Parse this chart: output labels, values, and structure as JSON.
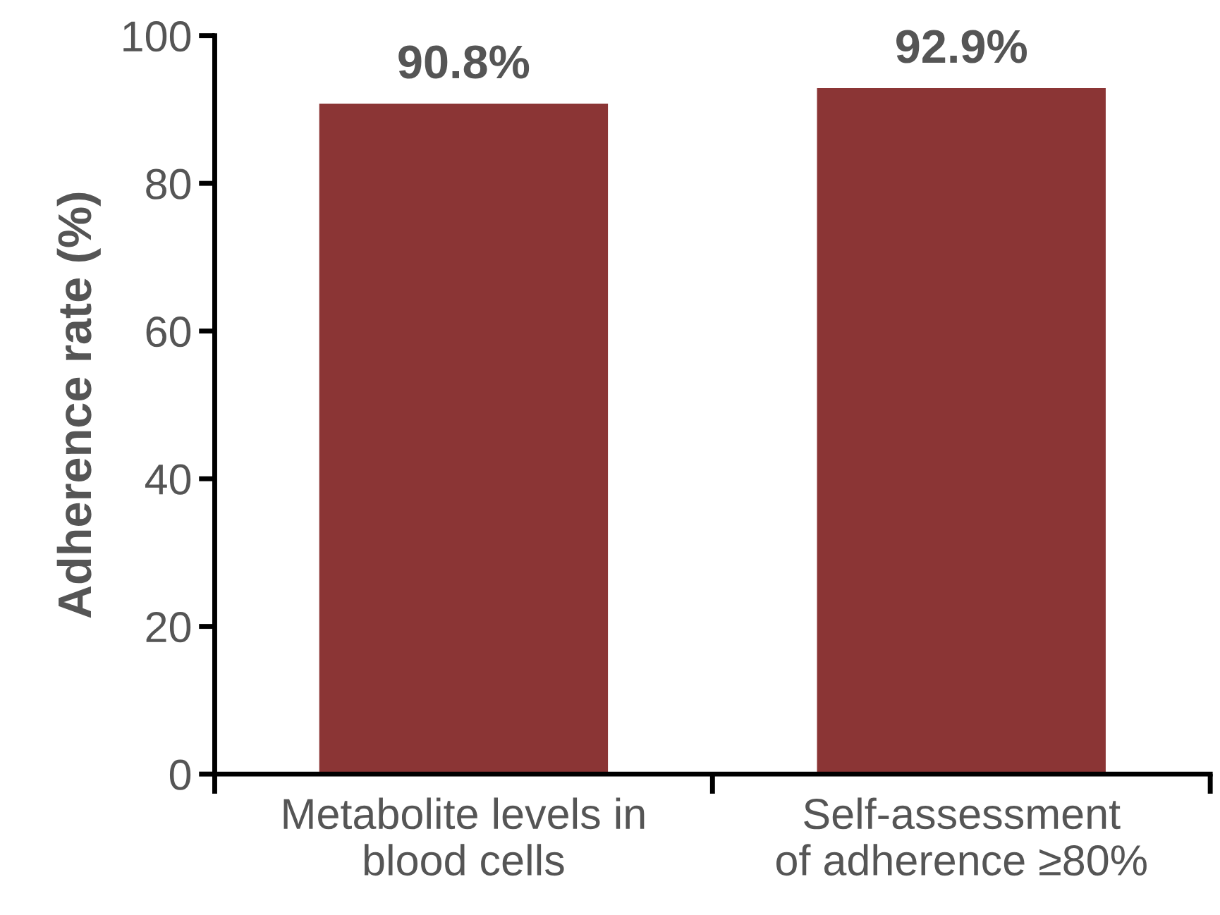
{
  "chart_data": {
    "type": "bar",
    "ylabel": "Adherence rate (%)",
    "categories": [
      "Metabolite levels in\nblood cells",
      "Self-assessment\nof adherence ≥80%"
    ],
    "values": [
      90.8,
      92.9
    ],
    "value_labels": [
      "90.8%",
      "92.9%"
    ],
    "color": "#8b3535",
    "ylim": [
      0,
      100
    ],
    "yticks": [
      0,
      20,
      40,
      60,
      80,
      100
    ],
    "grid": false
  }
}
